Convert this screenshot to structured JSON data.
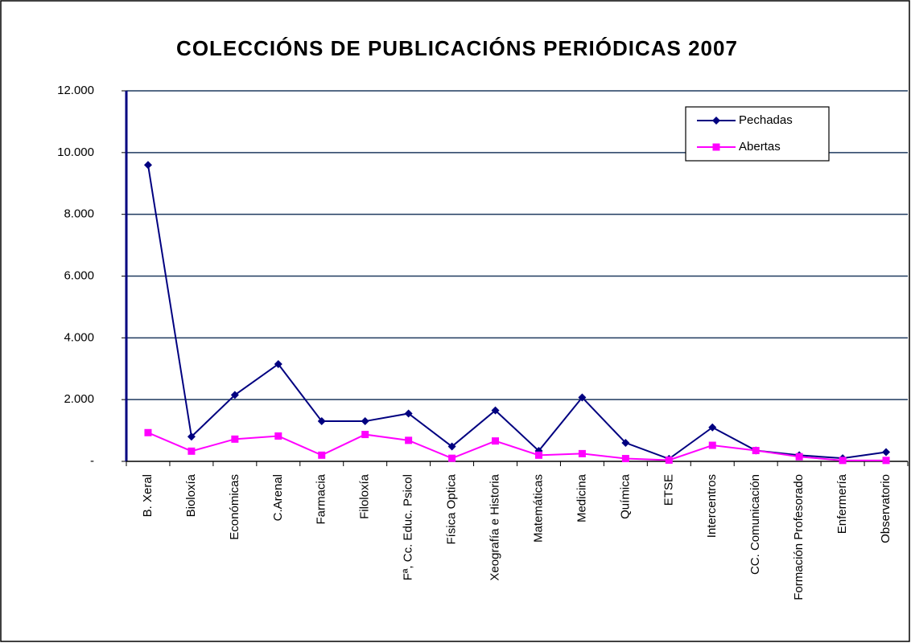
{
  "chart_data": {
    "type": "line",
    "title": "COLECCIÓNS DE PUBLICACIÓNS PERIÓDICAS 2007",
    "categories": [
      "B. Xeral",
      "Bioloxía",
      "Económicas",
      "C.Arenal",
      "Farmacia",
      "Filoloxía",
      "Fª, Cc. Educ. Psicol",
      "Física Optica",
      "Xeografía e Historia",
      "Matemáticas",
      "Medicina",
      "Química",
      "ETSE",
      "Intercentros",
      "CC. Comunicación",
      "Formación Profesorado",
      "Enfermería",
      "Observatorio"
    ],
    "series": [
      {
        "name": "Pechadas",
        "color": "#000080",
        "marker": "diamond",
        "values": [
          9600,
          800,
          2150,
          3150,
          1300,
          1300,
          1550,
          480,
          1650,
          340,
          2070,
          600,
          80,
          1100,
          350,
          200,
          100,
          300
        ]
      },
      {
        "name": "Abertas",
        "color": "#ff00ff",
        "marker": "square",
        "values": [
          930,
          330,
          720,
          820,
          200,
          870,
          680,
          100,
          660,
          200,
          250,
          90,
          40,
          520,
          350,
          150,
          30,
          30
        ]
      }
    ],
    "ylim": [
      0,
      12000
    ],
    "yticks": [
      {
        "value": 0,
        "label": "-"
      },
      {
        "value": 2000,
        "label": "2.000"
      },
      {
        "value": 4000,
        "label": "4.000"
      },
      {
        "value": 6000,
        "label": "6.000"
      },
      {
        "value": 8000,
        "label": "8.000"
      },
      {
        "value": 10000,
        "label": "10.000"
      },
      {
        "value": 12000,
        "label": "12.000"
      }
    ],
    "grid": true,
    "legend": "top-right"
  }
}
